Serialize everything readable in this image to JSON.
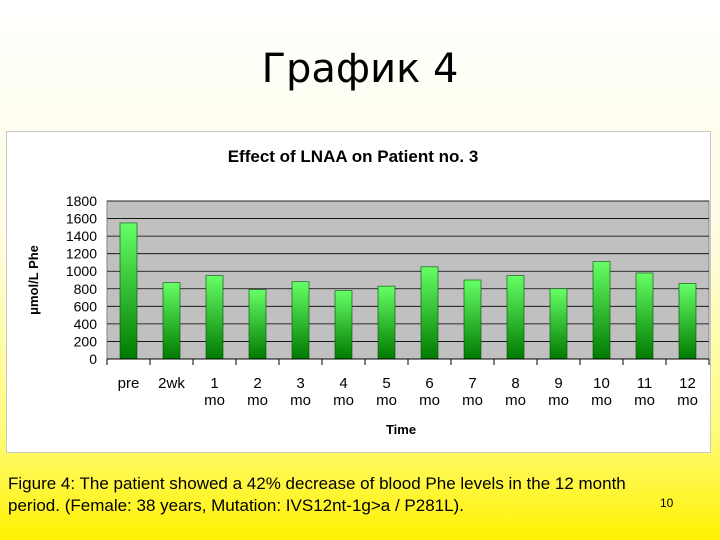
{
  "slide": {
    "title": "График 4",
    "caption_line1": "Figure 4: The patient showed a 42% decrease of blood Phe levels in the 12 month",
    "caption_line2": "period. (Female: 38 years, Mutation: IVS12nt-1g>a / P281L).",
    "number": "10"
  },
  "chart_data": {
    "type": "bar",
    "title": "Effect of LNAA on Patient no. 3",
    "xlabel": "Time",
    "ylabel": "μmol/L Phe",
    "categories": [
      [
        "pre"
      ],
      [
        "2wk"
      ],
      [
        "1",
        "mo"
      ],
      [
        "2",
        "mo"
      ],
      [
        "3",
        "mo"
      ],
      [
        "4",
        "mo"
      ],
      [
        "5",
        "mo"
      ],
      [
        "6",
        "mo"
      ],
      [
        "7",
        "mo"
      ],
      [
        "8",
        "mo"
      ],
      [
        "9",
        "mo"
      ],
      [
        "10",
        "mo"
      ],
      [
        "11",
        "mo"
      ],
      [
        "12",
        "mo"
      ]
    ],
    "values": [
      1550,
      870,
      950,
      790,
      880,
      780,
      830,
      1050,
      900,
      950,
      800,
      1110,
      980,
      860
    ],
    "ylim": [
      0,
      1800
    ],
    "yticks": [
      0,
      200,
      400,
      600,
      800,
      1000,
      1200,
      1400,
      1600,
      1800
    ],
    "grid": true,
    "legend": "none",
    "colors": {
      "bar_top": "#66ff66",
      "bar_bottom": "#007a00",
      "plot_background": "#c0c0c0",
      "grid": "#000000"
    }
  }
}
